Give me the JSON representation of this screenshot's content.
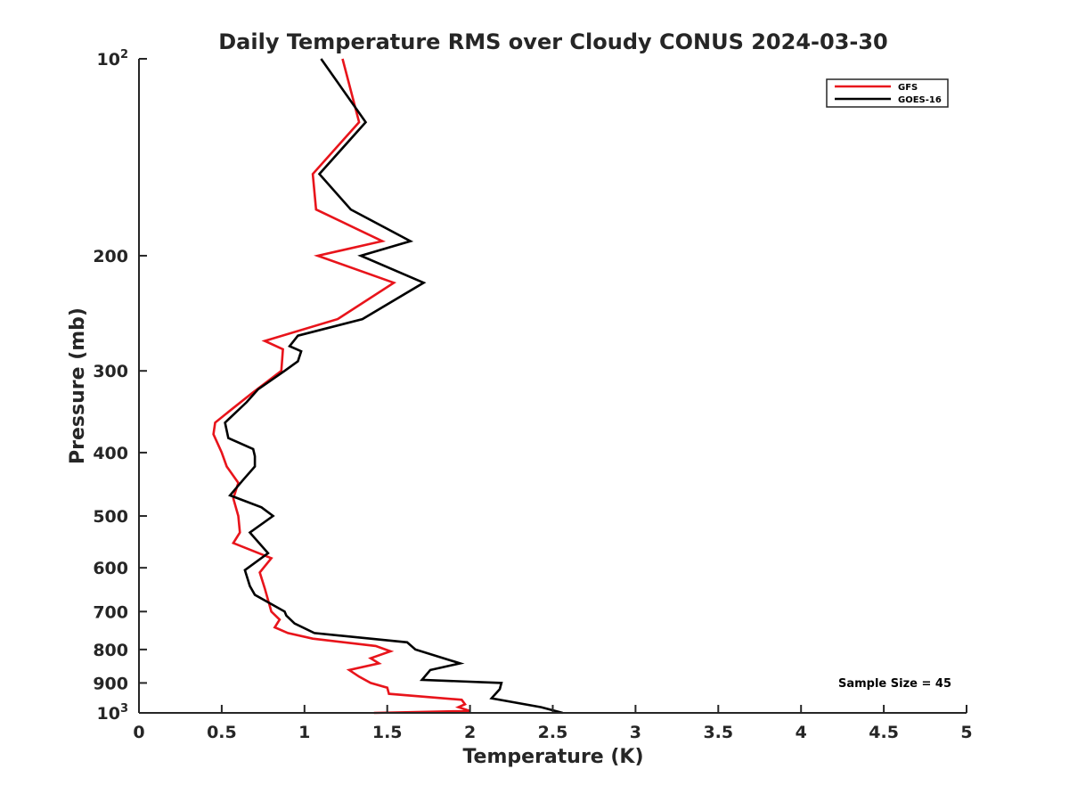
{
  "chart_data": {
    "type": "line",
    "title": "Daily Temperature RMS over Cloudy CONUS 2024-03-30",
    "xlabel": "Temperature (K)",
    "ylabel": "Pressure (mb)",
    "xlim": [
      0,
      5
    ],
    "ylim": [
      100,
      1000
    ],
    "y_scale": "log",
    "y_reversed": true,
    "grid": false,
    "legend_position": "top-right",
    "x_ticks": [
      "0",
      "0.5",
      "1",
      "1.5",
      "2",
      "2.5",
      "3",
      "3.5",
      "4",
      "4.5",
      "5"
    ],
    "y_ticks": [
      {
        "value": 100,
        "base": "10",
        "exp": "2"
      },
      {
        "value": 200,
        "label": "200"
      },
      {
        "value": 300,
        "label": "300"
      },
      {
        "value": 400,
        "label": "400"
      },
      {
        "value": 500,
        "label": "500"
      },
      {
        "value": 600,
        "label": "600"
      },
      {
        "value": 700,
        "label": "700"
      },
      {
        "value": 800,
        "label": "800"
      },
      {
        "value": 900,
        "label": "900"
      },
      {
        "value": 1000,
        "base": "10",
        "exp": "3"
      }
    ],
    "series": [
      {
        "name": "GFS",
        "color": "#e8141b",
        "points": [
          [
            1.23,
            100
          ],
          [
            1.33,
            125
          ],
          [
            1.05,
            150
          ],
          [
            1.07,
            170
          ],
          [
            1.47,
            190
          ],
          [
            1.08,
            200
          ],
          [
            1.54,
            220
          ],
          [
            1.2,
            250
          ],
          [
            0.76,
            270
          ],
          [
            0.87,
            278
          ],
          [
            0.86,
            300
          ],
          [
            0.68,
            325
          ],
          [
            0.55,
            345
          ],
          [
            0.46,
            360
          ],
          [
            0.45,
            375
          ],
          [
            0.5,
            400
          ],
          [
            0.53,
            420
          ],
          [
            0.6,
            445
          ],
          [
            0.57,
            470
          ],
          [
            0.6,
            500
          ],
          [
            0.61,
            530
          ],
          [
            0.57,
            550
          ],
          [
            0.8,
            580
          ],
          [
            0.73,
            610
          ],
          [
            0.76,
            645
          ],
          [
            0.8,
            700
          ],
          [
            0.85,
            720
          ],
          [
            0.82,
            740
          ],
          [
            0.9,
            755
          ],
          [
            1.05,
            770
          ],
          [
            1.43,
            790
          ],
          [
            1.52,
            805
          ],
          [
            1.4,
            825
          ],
          [
            1.45,
            840
          ],
          [
            1.27,
            860
          ],
          [
            1.33,
            880
          ],
          [
            1.4,
            900
          ],
          [
            1.5,
            915
          ],
          [
            1.51,
            935
          ],
          [
            1.95,
            955
          ],
          [
            1.97,
            970
          ],
          [
            1.93,
            980
          ],
          [
            2.0,
            993
          ],
          [
            1.42,
            1000
          ]
        ]
      },
      {
        "name": "GOES-16",
        "color": "#000000",
        "points": [
          [
            1.1,
            100
          ],
          [
            1.37,
            125
          ],
          [
            1.09,
            150
          ],
          [
            1.28,
            170
          ],
          [
            1.64,
            190
          ],
          [
            1.34,
            200
          ],
          [
            1.72,
            220
          ],
          [
            1.35,
            250
          ],
          [
            0.96,
            265
          ],
          [
            0.91,
            275
          ],
          [
            0.98,
            280
          ],
          [
            0.96,
            290
          ],
          [
            0.88,
            300
          ],
          [
            0.72,
            320
          ],
          [
            0.65,
            335
          ],
          [
            0.52,
            360
          ],
          [
            0.54,
            380
          ],
          [
            0.69,
            395
          ],
          [
            0.7,
            405
          ],
          [
            0.7,
            420
          ],
          [
            0.63,
            440
          ],
          [
            0.55,
            465
          ],
          [
            0.74,
            485
          ],
          [
            0.81,
            500
          ],
          [
            0.67,
            530
          ],
          [
            0.78,
            570
          ],
          [
            0.64,
            605
          ],
          [
            0.67,
            640
          ],
          [
            0.7,
            660
          ],
          [
            0.88,
            700
          ],
          [
            0.89,
            710
          ],
          [
            0.94,
            730
          ],
          [
            1.06,
            755
          ],
          [
            1.62,
            780
          ],
          [
            1.67,
            800
          ],
          [
            1.94,
            840
          ],
          [
            1.76,
            860
          ],
          [
            1.71,
            890
          ],
          [
            2.19,
            900
          ],
          [
            2.18,
            920
          ],
          [
            2.13,
            950
          ],
          [
            2.43,
            980
          ],
          [
            2.56,
            1000
          ]
        ]
      }
    ],
    "annotation": "Sample Size = 45"
  }
}
